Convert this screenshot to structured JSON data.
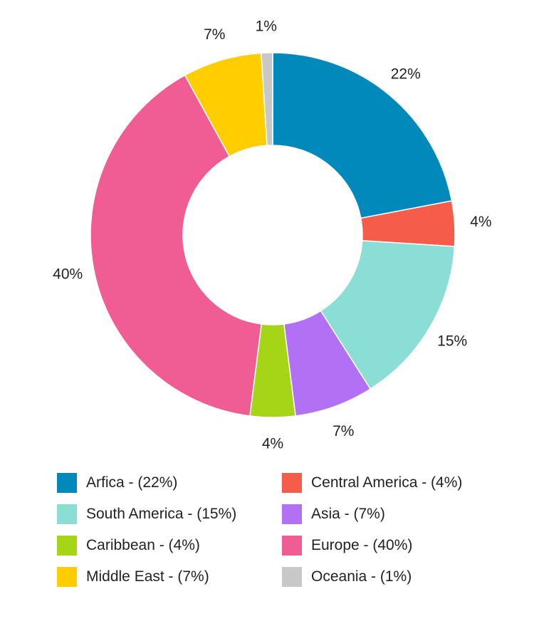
{
  "chart_data": {
    "type": "pie",
    "subtype": "donut",
    "title": "",
    "legend_position": "bottom",
    "slices": [
      {
        "name": "Arfica",
        "value": 22,
        "label": "22%",
        "legend": "Arfica - (22%)",
        "color": "#0089BA"
      },
      {
        "name": "Central America",
        "value": 4,
        "label": "4%",
        "legend": "Central America - (4%)",
        "color": "#F55D4A"
      },
      {
        "name": "South America",
        "value": 15,
        "label": "15%",
        "legend": "South America - (15%)",
        "color": "#8ADED6"
      },
      {
        "name": "Asia",
        "value": 7,
        "label": "7%",
        "legend": "Asia - (7%)",
        "color": "#B270F5"
      },
      {
        "name": "Caribbean",
        "value": 4,
        "label": "4%",
        "legend": "Caribbean - (4%)",
        "color": "#A6D416"
      },
      {
        "name": "Europe",
        "value": 40,
        "label": "40%",
        "legend": "Europe - (40%)",
        "color": "#F05D94"
      },
      {
        "name": "Middle East",
        "value": 7,
        "label": "7%",
        "legend": "Middle East - (7%)",
        "color": "#FFCD00"
      },
      {
        "name": "Oceania",
        "value": 1,
        "label": "1%",
        "legend": "Oceania - (1%)",
        "color": "#C8C8C8"
      }
    ]
  }
}
